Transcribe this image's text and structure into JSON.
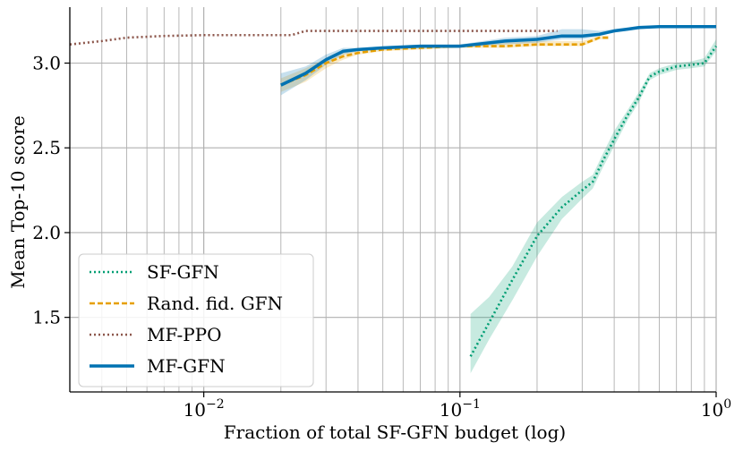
{
  "chart_data": {
    "type": "line",
    "title": "",
    "xlabel": "Fraction of total SF-GFN budget (log)",
    "ylabel": "Mean Top-10 score",
    "xscale": "log",
    "xlim": [
      0.003,
      1.0
    ],
    "ylim": [
      1.06,
      3.33
    ],
    "grid": true,
    "legend_position": "lower-left",
    "yticks": [
      1.5,
      2.0,
      2.5,
      3.0
    ],
    "ytick_labels": [
      "1.5",
      "2.0",
      "2.5",
      "3.0"
    ],
    "xticks": [
      0.01,
      0.1,
      1.0
    ],
    "xtick_labels": [
      {
        "base": "10",
        "exp": "−2"
      },
      {
        "base": "10",
        "exp": "−1"
      },
      {
        "base": "10",
        "exp": "0"
      }
    ],
    "series": [
      {
        "name": "SF-GFN",
        "color": "#009e73",
        "style": "dotted",
        "x": [
          0.11,
          0.13,
          0.16,
          0.2,
          0.25,
          0.3,
          0.33,
          0.36,
          0.4,
          0.45,
          0.5,
          0.55,
          0.6,
          0.7,
          0.8,
          0.9,
          1.0
        ],
        "y": [
          1.27,
          1.47,
          1.72,
          1.98,
          2.15,
          2.25,
          2.3,
          2.42,
          2.55,
          2.69,
          2.8,
          2.92,
          2.95,
          2.98,
          2.99,
          3.0,
          3.1
        ],
        "band_low": [
          1.17,
          1.37,
          1.6,
          1.86,
          2.08,
          2.2,
          2.26,
          2.38,
          2.51,
          2.66,
          2.77,
          2.9,
          2.93,
          2.96,
          2.97,
          2.98,
          3.07
        ],
        "band_high": [
          1.52,
          1.62,
          1.8,
          2.06,
          2.21,
          2.3,
          2.34,
          2.46,
          2.6,
          2.72,
          2.83,
          2.94,
          2.97,
          3.0,
          3.01,
          3.03,
          3.14
        ]
      },
      {
        "name": "Rand. fid. GFN",
        "color": "#e69f00",
        "style": "dashed",
        "x": [
          0.02,
          0.025,
          0.03,
          0.035,
          0.04,
          0.05,
          0.07,
          0.1,
          0.15,
          0.2,
          0.25,
          0.3,
          0.35,
          0.38
        ],
        "y": [
          2.87,
          2.93,
          3.0,
          3.04,
          3.06,
          3.08,
          3.09,
          3.1,
          3.1,
          3.11,
          3.11,
          3.11,
          3.15,
          3.15
        ],
        "band_low": [
          2.83,
          2.89,
          2.97,
          3.02,
          3.05,
          3.07,
          3.08,
          3.09,
          3.09,
          3.1,
          3.1,
          3.1,
          3.14,
          3.14
        ],
        "band_high": [
          2.91,
          2.97,
          3.03,
          3.06,
          3.07,
          3.09,
          3.1,
          3.11,
          3.12,
          3.13,
          3.13,
          3.13,
          3.16,
          3.16
        ]
      },
      {
        "name": "MF-PPO",
        "color": "#8c564b",
        "style": "dotted",
        "x": [
          0.003,
          0.004,
          0.005,
          0.007,
          0.01,
          0.015,
          0.02,
          0.022,
          0.025,
          0.05,
          0.1,
          0.15,
          0.2,
          0.22,
          0.24
        ],
        "y": [
          3.11,
          3.13,
          3.15,
          3.16,
          3.165,
          3.165,
          3.165,
          3.165,
          3.19,
          3.19,
          3.19,
          3.19,
          3.19,
          3.19,
          3.19
        ],
        "band_low": [],
        "band_high": []
      },
      {
        "name": "MF-GFN",
        "color": "#0072b2",
        "style": "solid",
        "x": [
          0.02,
          0.025,
          0.03,
          0.035,
          0.04,
          0.05,
          0.07,
          0.1,
          0.15,
          0.2,
          0.25,
          0.3,
          0.35,
          0.4,
          0.45,
          0.5,
          0.6,
          0.7,
          0.8,
          0.9,
          1.0
        ],
        "y": [
          2.87,
          2.94,
          3.02,
          3.07,
          3.08,
          3.09,
          3.1,
          3.1,
          3.13,
          3.14,
          3.16,
          3.16,
          3.17,
          3.19,
          3.2,
          3.21,
          3.215,
          3.215,
          3.215,
          3.215,
          3.215
        ],
        "band_low": [
          2.81,
          2.9,
          2.99,
          3.05,
          3.07,
          3.08,
          3.09,
          3.09,
          3.11,
          3.12,
          3.14,
          3.14,
          3.16,
          3.18,
          3.19,
          3.2,
          3.21,
          3.21,
          3.21,
          3.21,
          3.21
        ],
        "band_high": [
          2.94,
          2.98,
          3.05,
          3.09,
          3.09,
          3.1,
          3.11,
          3.11,
          3.15,
          3.16,
          3.2,
          3.2,
          3.19,
          3.2,
          3.21,
          3.22,
          3.22,
          3.22,
          3.22,
          3.22,
          3.22
        ]
      }
    ]
  }
}
